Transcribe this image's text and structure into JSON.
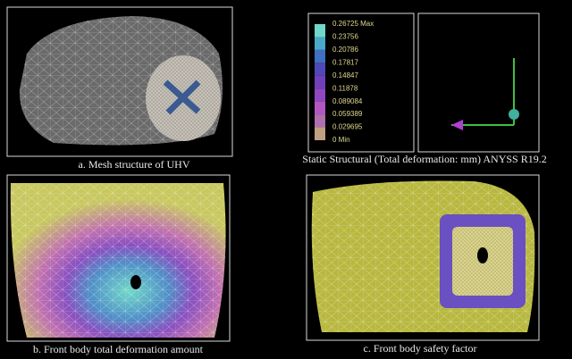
{
  "captions": {
    "a": "a. Mesh structure of UHV",
    "legend": "Static Structural (Total deformation: mm) ANYSS R19.2",
    "b": "b. Front body total deformation amount",
    "c": "c. Front body safety factor"
  },
  "legend": {
    "labels": [
      "0.26725 Max",
      "0.23756",
      "0.20786",
      "0.17817",
      "0.14847",
      "0.11878",
      "0.089084",
      "0.059389",
      "0.029695",
      "0 Min"
    ]
  }
}
